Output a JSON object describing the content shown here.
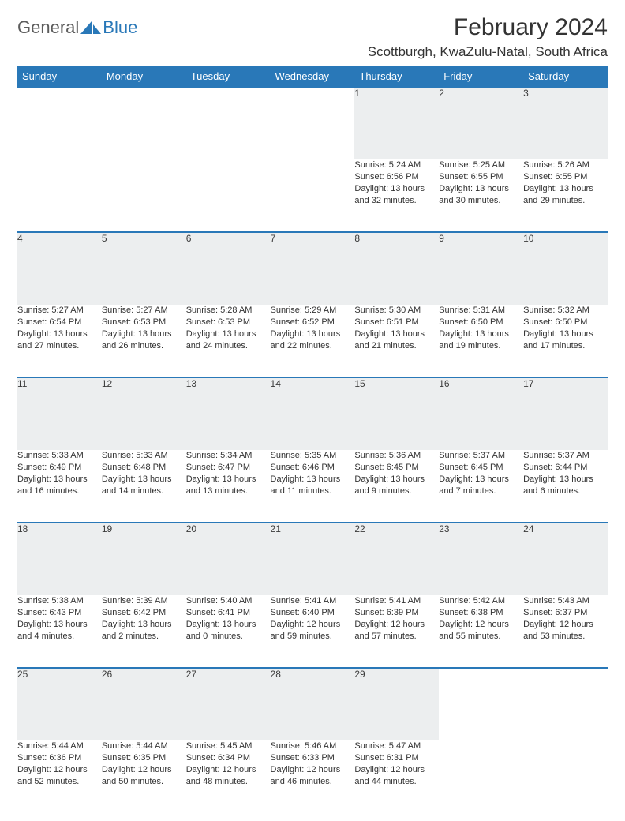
{
  "brand": {
    "name_gray": "General",
    "name_blue": "Blue"
  },
  "title": "February 2024",
  "location": "Scottburgh, KwaZulu-Natal, South Africa",
  "colors": {
    "header_bg": "#2978b8",
    "header_text": "#ffffff",
    "daynum_bg": "#eceeef",
    "body_bg": "#ffffff",
    "rule": "#2978b8",
    "logo_gray": "#5c5c5c",
    "logo_blue": "#2978b8"
  },
  "day_names": [
    "Sunday",
    "Monday",
    "Tuesday",
    "Wednesday",
    "Thursday",
    "Friday",
    "Saturday"
  ],
  "weeks": [
    [
      null,
      null,
      null,
      null,
      {
        "n": "1",
        "sr": "5:24 AM",
        "ss": "6:56 PM",
        "dl": "13 hours and 32 minutes."
      },
      {
        "n": "2",
        "sr": "5:25 AM",
        "ss": "6:55 PM",
        "dl": "13 hours and 30 minutes."
      },
      {
        "n": "3",
        "sr": "5:26 AM",
        "ss": "6:55 PM",
        "dl": "13 hours and 29 minutes."
      }
    ],
    [
      {
        "n": "4",
        "sr": "5:27 AM",
        "ss": "6:54 PM",
        "dl": "13 hours and 27 minutes."
      },
      {
        "n": "5",
        "sr": "5:27 AM",
        "ss": "6:53 PM",
        "dl": "13 hours and 26 minutes."
      },
      {
        "n": "6",
        "sr": "5:28 AM",
        "ss": "6:53 PM",
        "dl": "13 hours and 24 minutes."
      },
      {
        "n": "7",
        "sr": "5:29 AM",
        "ss": "6:52 PM",
        "dl": "13 hours and 22 minutes."
      },
      {
        "n": "8",
        "sr": "5:30 AM",
        "ss": "6:51 PM",
        "dl": "13 hours and 21 minutes."
      },
      {
        "n": "9",
        "sr": "5:31 AM",
        "ss": "6:50 PM",
        "dl": "13 hours and 19 minutes."
      },
      {
        "n": "10",
        "sr": "5:32 AM",
        "ss": "6:50 PM",
        "dl": "13 hours and 17 minutes."
      }
    ],
    [
      {
        "n": "11",
        "sr": "5:33 AM",
        "ss": "6:49 PM",
        "dl": "13 hours and 16 minutes."
      },
      {
        "n": "12",
        "sr": "5:33 AM",
        "ss": "6:48 PM",
        "dl": "13 hours and 14 minutes."
      },
      {
        "n": "13",
        "sr": "5:34 AM",
        "ss": "6:47 PM",
        "dl": "13 hours and 13 minutes."
      },
      {
        "n": "14",
        "sr": "5:35 AM",
        "ss": "6:46 PM",
        "dl": "13 hours and 11 minutes."
      },
      {
        "n": "15",
        "sr": "5:36 AM",
        "ss": "6:45 PM",
        "dl": "13 hours and 9 minutes."
      },
      {
        "n": "16",
        "sr": "5:37 AM",
        "ss": "6:45 PM",
        "dl": "13 hours and 7 minutes."
      },
      {
        "n": "17",
        "sr": "5:37 AM",
        "ss": "6:44 PM",
        "dl": "13 hours and 6 minutes."
      }
    ],
    [
      {
        "n": "18",
        "sr": "5:38 AM",
        "ss": "6:43 PM",
        "dl": "13 hours and 4 minutes."
      },
      {
        "n": "19",
        "sr": "5:39 AM",
        "ss": "6:42 PM",
        "dl": "13 hours and 2 minutes."
      },
      {
        "n": "20",
        "sr": "5:40 AM",
        "ss": "6:41 PM",
        "dl": "13 hours and 0 minutes."
      },
      {
        "n": "21",
        "sr": "5:41 AM",
        "ss": "6:40 PM",
        "dl": "12 hours and 59 minutes."
      },
      {
        "n": "22",
        "sr": "5:41 AM",
        "ss": "6:39 PM",
        "dl": "12 hours and 57 minutes."
      },
      {
        "n": "23",
        "sr": "5:42 AM",
        "ss": "6:38 PM",
        "dl": "12 hours and 55 minutes."
      },
      {
        "n": "24",
        "sr": "5:43 AM",
        "ss": "6:37 PM",
        "dl": "12 hours and 53 minutes."
      }
    ],
    [
      {
        "n": "25",
        "sr": "5:44 AM",
        "ss": "6:36 PM",
        "dl": "12 hours and 52 minutes."
      },
      {
        "n": "26",
        "sr": "5:44 AM",
        "ss": "6:35 PM",
        "dl": "12 hours and 50 minutes."
      },
      {
        "n": "27",
        "sr": "5:45 AM",
        "ss": "6:34 PM",
        "dl": "12 hours and 48 minutes."
      },
      {
        "n": "28",
        "sr": "5:46 AM",
        "ss": "6:33 PM",
        "dl": "12 hours and 46 minutes."
      },
      {
        "n": "29",
        "sr": "5:47 AM",
        "ss": "6:31 PM",
        "dl": "12 hours and 44 minutes."
      },
      null,
      null
    ]
  ],
  "labels": {
    "sunrise": "Sunrise:",
    "sunset": "Sunset:",
    "daylight": "Daylight:"
  }
}
